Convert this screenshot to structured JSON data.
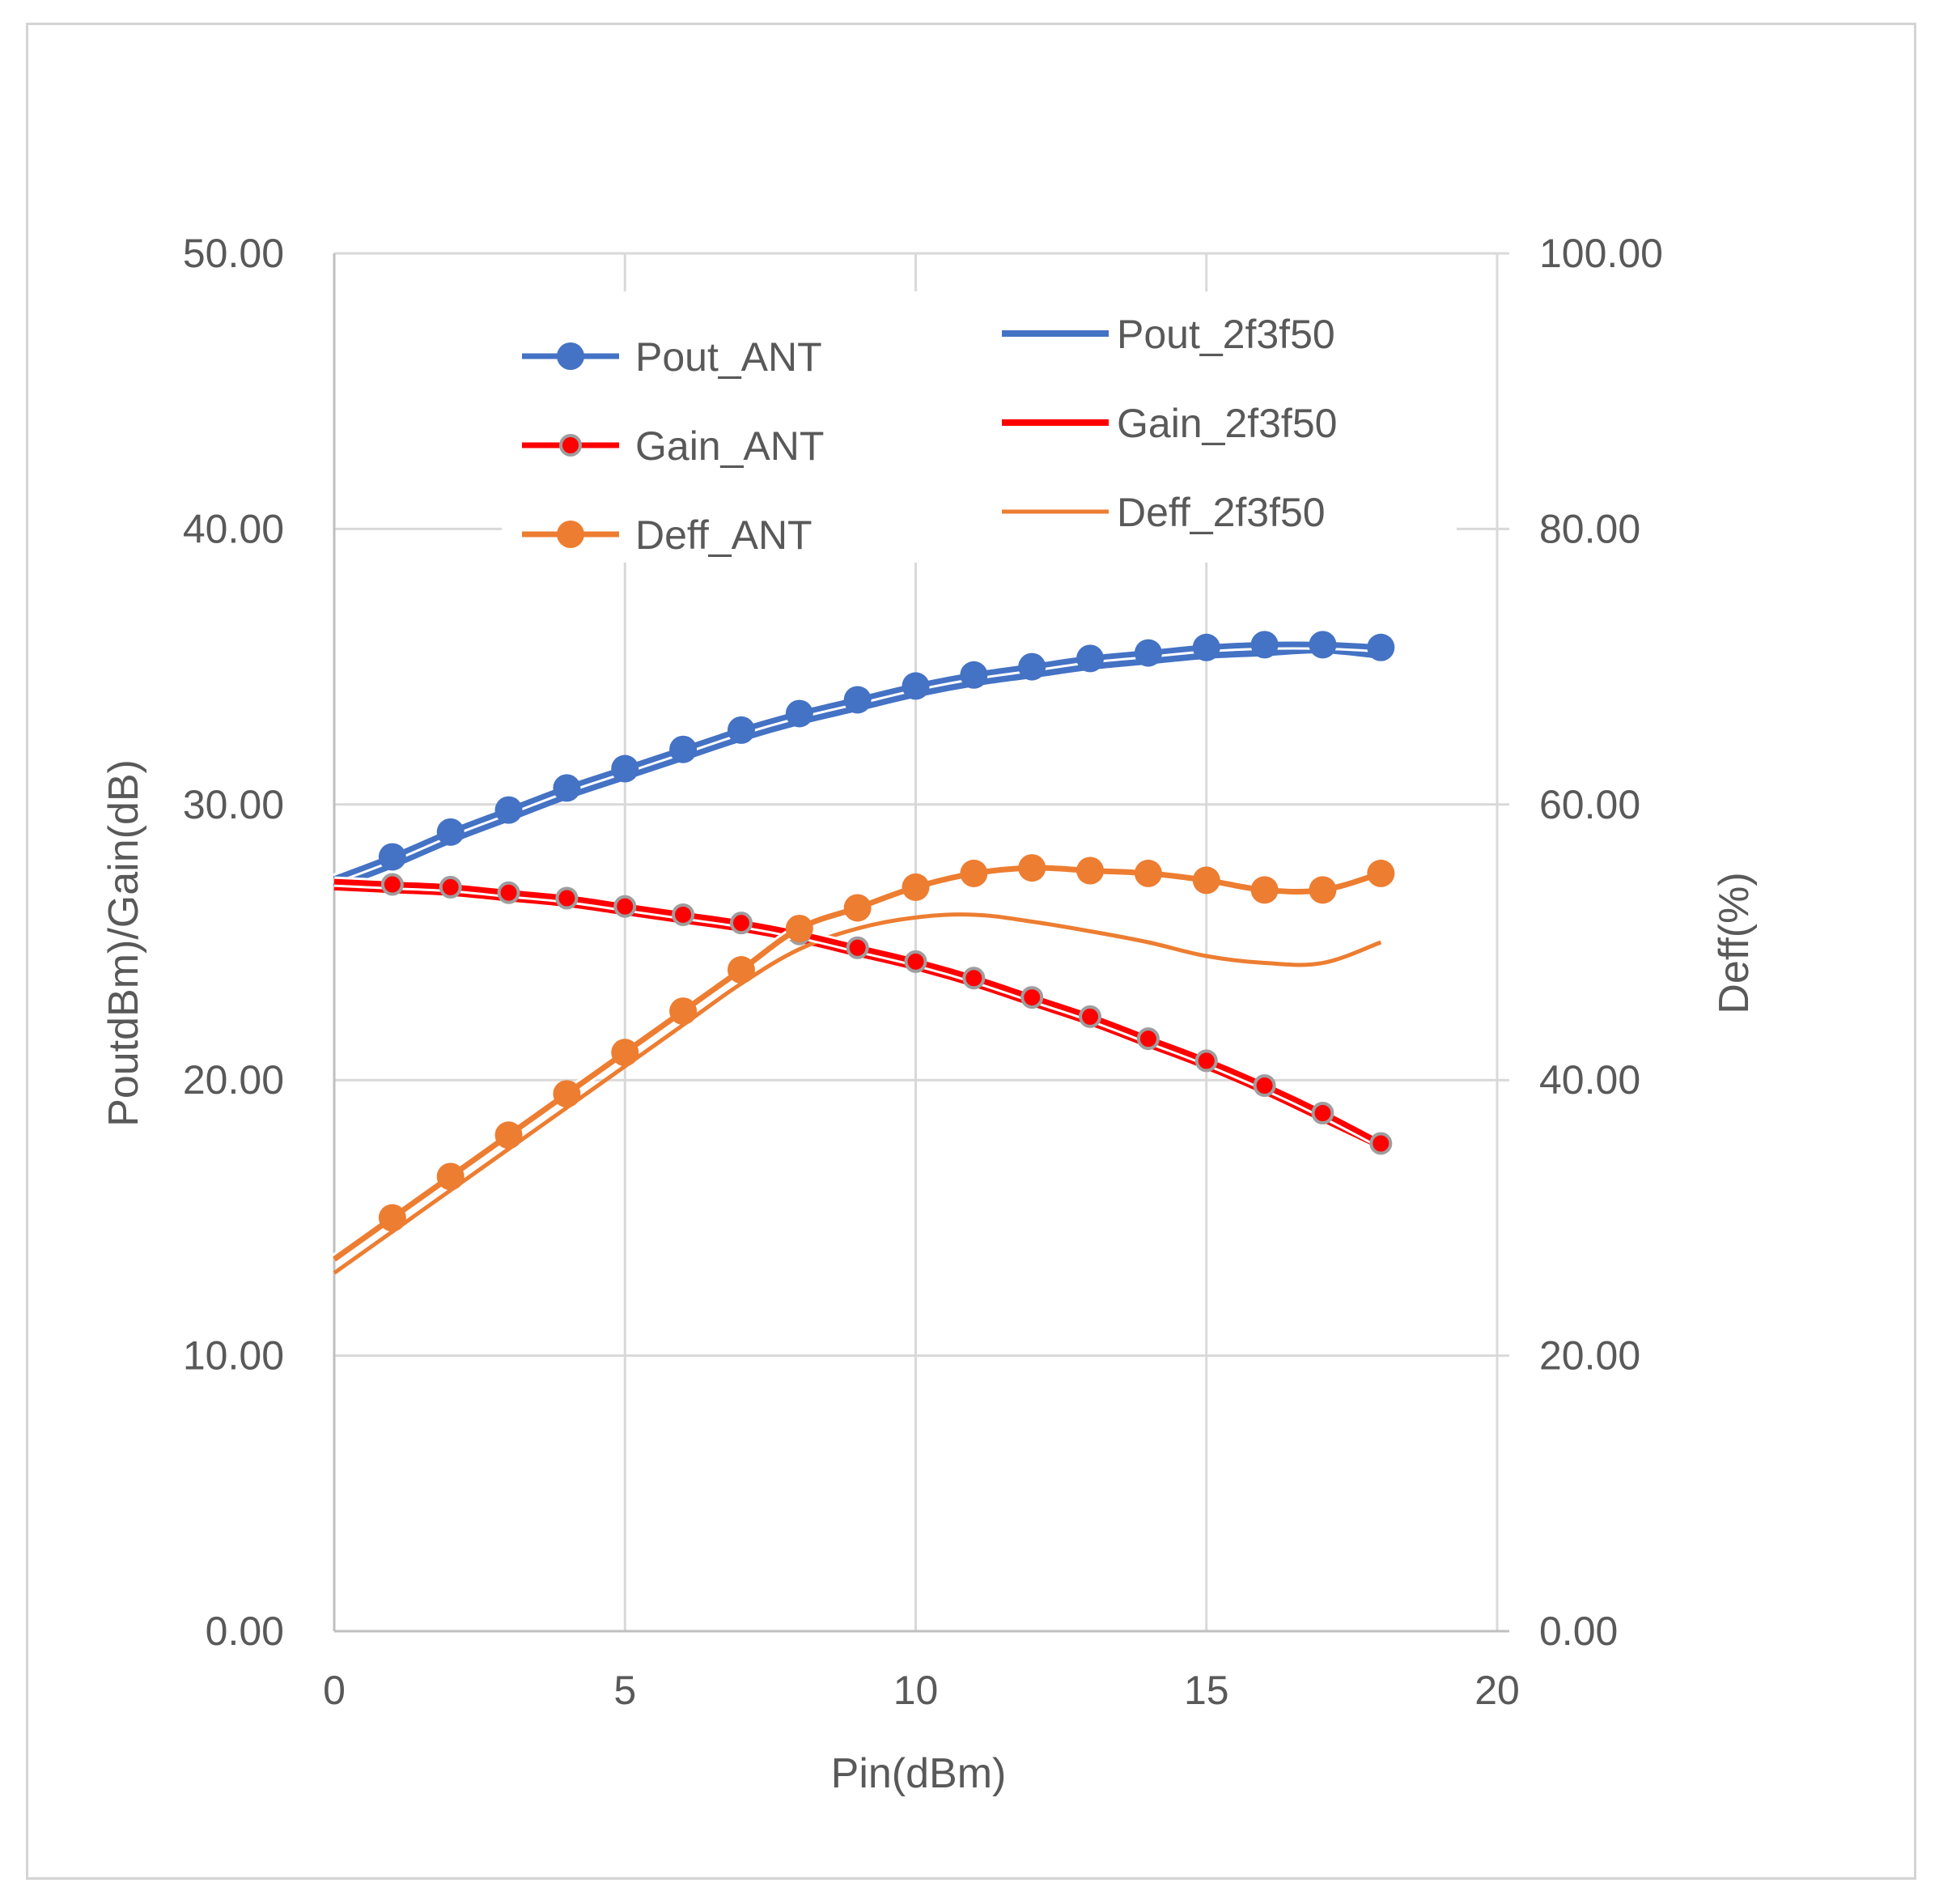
{
  "chart_data": {
    "type": "line",
    "title": "",
    "xlabel": "Pin(dBm)",
    "ylabel": "PoutdBm)/Gain(dB)",
    "y2label": "Deff(%)",
    "xlim": [
      0,
      20
    ],
    "ylim": [
      0,
      50
    ],
    "y2lim": [
      0,
      100
    ],
    "xticks": [
      "0",
      "5",
      "10",
      "15",
      "20"
    ],
    "yticks": [
      "0.00",
      "10.00",
      "20.00",
      "30.00",
      "40.00",
      "50.00"
    ],
    "y2ticks": [
      "0.00",
      "20.00",
      "40.00",
      "60.00",
      "80.00",
      "100.00"
    ],
    "grid": true,
    "legend_position": "top-left inside",
    "series": [
      {
        "name": "Pout_ANT",
        "axis": "left",
        "style": "line-markers",
        "color": "#4472C4",
        "x": [
          0,
          1,
          2,
          3,
          4,
          5,
          6,
          7,
          8,
          9,
          10,
          11,
          12,
          13,
          14,
          15,
          16,
          17,
          18
        ],
        "y": [
          27.3,
          28.1,
          29.0,
          29.8,
          30.6,
          31.3,
          32.0,
          32.7,
          33.3,
          33.8,
          34.3,
          34.7,
          35.0,
          35.3,
          35.5,
          35.7,
          35.8,
          35.8,
          35.7
        ]
      },
      {
        "name": "Gain_ANT",
        "axis": "left",
        "style": "line-markers",
        "color": "#FF0000",
        "x": [
          0,
          1,
          2,
          3,
          4,
          5,
          6,
          7,
          8,
          9,
          10,
          11,
          12,
          13,
          14,
          15,
          16,
          17,
          18
        ],
        "y": [
          27.2,
          27.1,
          27.0,
          26.8,
          26.6,
          26.3,
          26.0,
          25.7,
          25.3,
          24.8,
          24.3,
          23.7,
          23.0,
          22.3,
          21.5,
          20.7,
          19.8,
          18.8,
          17.7
        ]
      },
      {
        "name": "Deff_ANT",
        "axis": "right",
        "style": "line-markers",
        "color": "#ED7D31",
        "x": [
          0,
          1,
          2,
          3,
          4,
          5,
          6,
          7,
          8,
          9,
          10,
          11,
          12,
          13,
          14,
          15,
          16,
          17,
          18
        ],
        "y": [
          27.0,
          30.0,
          33.0,
          36.0,
          39.0,
          42.0,
          45.0,
          48.0,
          51.0,
          52.5,
          54.0,
          55.0,
          55.4,
          55.2,
          55.0,
          54.5,
          53.8,
          53.8,
          55.0
        ]
      },
      {
        "name": "Pout_2f3f50",
        "axis": "left",
        "style": "line",
        "color": "#4472C4",
        "x": [
          0,
          1,
          2,
          3,
          4,
          5,
          6,
          7,
          8,
          9,
          10,
          11,
          12,
          13,
          14,
          15,
          16,
          17,
          18
        ],
        "y": [
          27.0,
          27.8,
          28.7,
          29.5,
          30.3,
          31.0,
          31.7,
          32.4,
          33.0,
          33.5,
          34.0,
          34.4,
          34.7,
          35.0,
          35.2,
          35.4,
          35.5,
          35.6,
          35.4
        ]
      },
      {
        "name": "Gain_2f3f50",
        "axis": "left",
        "style": "line",
        "color": "#FF0000",
        "x": [
          0,
          1,
          2,
          3,
          4,
          5,
          6,
          7,
          8,
          9,
          10,
          11,
          12,
          13,
          14,
          15,
          16,
          17,
          18
        ],
        "y": [
          27.0,
          26.9,
          26.8,
          26.6,
          26.4,
          26.1,
          25.8,
          25.5,
          25.1,
          24.6,
          24.1,
          23.5,
          22.8,
          22.1,
          21.3,
          20.5,
          19.6,
          18.6,
          17.6
        ]
      },
      {
        "name": "Deff_2f3f50",
        "axis": "right",
        "style": "line",
        "color": "#ED7D31",
        "x": [
          0,
          1,
          2,
          3,
          4,
          5,
          6,
          7,
          8,
          9,
          10,
          11,
          12,
          13,
          14,
          15,
          16,
          17,
          18
        ],
        "y": [
          26.0,
          29.0,
          32.0,
          35.0,
          38.0,
          41.0,
          44.0,
          47.0,
          49.5,
          51.0,
          51.8,
          52.0,
          51.5,
          50.8,
          50.0,
          49.0,
          48.5,
          48.5,
          50.0
        ]
      }
    ]
  }
}
